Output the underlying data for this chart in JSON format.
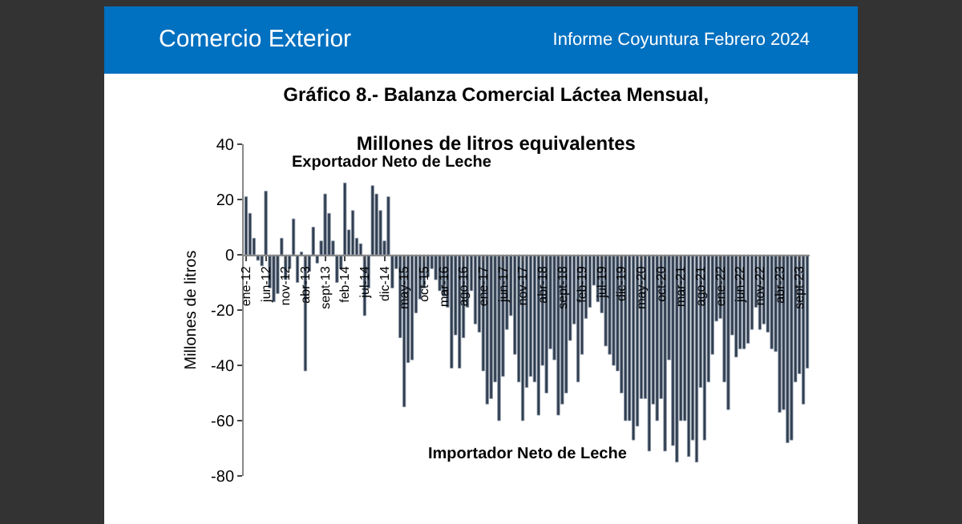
{
  "chart_data": {
    "type": "bar",
    "title": "Gráfico 8.- Balanza Comercial Láctea Mensual,",
    "subtitle": "Millones de litros equivalentes",
    "ylabel": "Millones de litros",
    "annotations": [
      "Comercio Exterior",
      "Informe Coyuntura Febrero 2024",
      "Exportador Neto de Leche",
      "Importador Neto de Leche"
    ],
    "categories": [
      "ene-12",
      null,
      null,
      null,
      null,
      "jun-12",
      null,
      null,
      null,
      null,
      "nov-12",
      null,
      null,
      null,
      null,
      "abr-13",
      null,
      null,
      null,
      null,
      "sept-13",
      null,
      null,
      null,
      null,
      "feb-14",
      null,
      null,
      null,
      null,
      "jul-14",
      null,
      null,
      null,
      null,
      "dic-14",
      null,
      null,
      null,
      null,
      "may-15",
      null,
      null,
      null,
      null,
      "oct-15",
      null,
      null,
      null,
      null,
      "mar-16",
      null,
      null,
      null,
      null,
      "ago-16",
      null,
      null,
      null,
      null,
      "ene-17",
      null,
      null,
      null,
      null,
      "jun-17",
      null,
      null,
      null,
      null,
      "nov-17",
      null,
      null,
      null,
      null,
      "abr-18",
      null,
      null,
      null,
      null,
      "sept-18",
      null,
      null,
      null,
      null,
      "feb-19",
      null,
      null,
      null,
      null,
      "jul-19",
      null,
      null,
      null,
      null,
      "dic-19",
      null,
      null,
      null,
      null,
      "may-20",
      null,
      null,
      null,
      null,
      "oct-20",
      null,
      null,
      null,
      null,
      "mar-21",
      null,
      null,
      null,
      null,
      "ago-21",
      null,
      null,
      null,
      null,
      "ene-22",
      null,
      null,
      null,
      null,
      "jun-22",
      null,
      null,
      null,
      null,
      "nov-22",
      null,
      null,
      null,
      null,
      "abr-23",
      null,
      null,
      null,
      null,
      "sept-23",
      null,
      null
    ],
    "values": [
      21,
      15,
      6,
      -2,
      -4,
      23,
      -12,
      -17,
      -14,
      6,
      -9,
      -5,
      13,
      -10,
      1,
      -42,
      -6,
      10,
      -3,
      5,
      22,
      15,
      5,
      -10,
      -5,
      26,
      9,
      16,
      6,
      4,
      -22,
      -12,
      25,
      22,
      16,
      5,
      21,
      -12,
      -5,
      -30,
      -55,
      -39,
      -38,
      -21,
      -16,
      -12,
      -8,
      -5,
      -9,
      -13,
      -15,
      -19,
      -41,
      -29,
      -41,
      -30,
      -19,
      -13,
      -25,
      -28,
      -42,
      -54,
      -52,
      -46,
      -60,
      -44,
      -27,
      -22,
      -36,
      -46,
      -60,
      -48,
      -44,
      -46,
      -58,
      -40,
      -50,
      -34,
      -38,
      -58,
      -54,
      -50,
      -31,
      -25,
      -46,
      -36,
      -23,
      -19,
      -11,
      -17,
      -21,
      -33,
      -36,
      -40,
      -42,
      -50,
      -60,
      -60,
      -67,
      -62,
      -52,
      -52,
      -71,
      -54,
      -60,
      -52,
      -71,
      -38,
      -69,
      -75,
      -60,
      -60,
      -73,
      -67,
      -75,
      -48,
      -67,
      -46,
      -36,
      -24,
      -23,
      -46,
      -56,
      -29,
      -37,
      -34,
      -34,
      -32,
      -27,
      -19,
      -27,
      -25,
      -28,
      -34,
      -35,
      -57,
      -56,
      -68,
      -67,
      -46,
      -43,
      -54,
      -41
    ],
    "color": "#2f3d4f",
    "ylim": [
      -80,
      40
    ],
    "yticks": [
      -80,
      -60,
      -40,
      -20,
      0,
      20,
      40
    ],
    "grid": false
  }
}
